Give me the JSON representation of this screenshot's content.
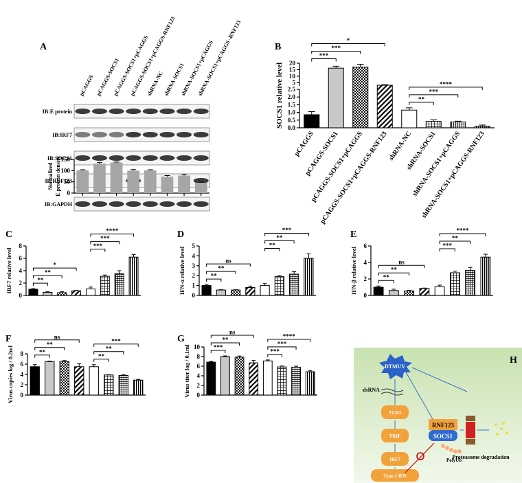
{
  "blot": {
    "panel": "A",
    "lanes": [
      "pCAGGS",
      "pCAGGS-SOCS1",
      "pCAGGS-SOCS1+pCAGGS",
      "pCAGGS-SOCS1+pCAGGS-RNF123",
      "shRNA-NC",
      "shRNA-SOCS1",
      "shRNA-SOCS1+pCAGGS",
      "shRNA-SOCS1+pCAGGS -RNF123"
    ],
    "rows": [
      "IB:E protein",
      "IB:IRF7",
      "IB:SOCS1",
      "IB:RNF123",
      "IB:GAPDH"
    ]
  },
  "bar_fills": [
    "black",
    "grey",
    "checker",
    "diagonal",
    "white",
    "grid",
    "dense-grid",
    "vertical"
  ],
  "chart_data": [
    {
      "type": "bar",
      "y_label": [
        "Normalized",
        "E protein density"
      ],
      "color": "#a6a6a6",
      "values": [
        101,
        131,
        136,
        100,
        101,
        73,
        78,
        46
      ],
      "errors": [
        3,
        5,
        2,
        5,
        3,
        5,
        4,
        3
      ],
      "ylim": [
        0,
        150
      ],
      "yticks": [
        0,
        50,
        100,
        150
      ]
    },
    {
      "type": "bar",
      "panel": "B",
      "y_label": "SOCS1 relative level",
      "categories": [
        "pCAGGS",
        "pCAGGS-SOCS1",
        "pCAGGS-SOCS1+pCAGGS",
        "pCAGGS-SOCS1+pCAGGS-RNF123",
        "shRNA-NC",
        "shRNA-SOCS1",
        "shRNA-SOCS1+pCAGGS",
        "shRNA-SOCS1+pCAGGS-RNF123"
      ],
      "values": [
        0.85,
        16.2,
        17,
        3,
        1.15,
        0.42,
        0.38,
        0.1
      ],
      "errors": [
        0.2,
        1.5,
        2.2,
        0.4,
        0.15,
        0.1,
        0.05,
        0.08
      ],
      "segments": [
        {
          "ylim": [
            0,
            2.5
          ],
          "yticks": [
            {
              "value": 0,
              "label": "0.0"
            },
            {
              "value": 0.5,
              "label": "0.5"
            },
            {
              "value": 1,
              "label": "1.0"
            },
            {
              "value": 1.5,
              "label": "1.5"
            },
            {
              "value": 2,
              "label": "2.0"
            },
            {
              "value": 2.5,
              "label": "2.5"
            }
          ]
        },
        {
          "ylim": [
            2.5,
            20
          ],
          "yticks": [
            5,
            10,
            15,
            20
          ]
        }
      ],
      "significance": [
        {
          "from": 0,
          "to": 1,
          "label": "***"
        },
        {
          "from": 0,
          "to": 2,
          "label": "***"
        },
        {
          "from": 0,
          "to": 3,
          "label": "*"
        },
        {
          "from": 4,
          "to": 5,
          "label": "**"
        },
        {
          "from": 4,
          "to": 6,
          "label": "***"
        },
        {
          "from": 4,
          "to": 7,
          "label": "****"
        }
      ]
    },
    {
      "type": "bar",
      "panel": "C",
      "y_label": "IRF7 relative level",
      "values": [
        1.0,
        0.5,
        0.45,
        0.75,
        1.05,
        3.1,
        3.5,
        6.2
      ],
      "errors": [
        0.1,
        0.1,
        0.15,
        0.05,
        0.3,
        0.2,
        0.5,
        0.4
      ],
      "ylim": [
        0,
        8
      ],
      "yticks": [
        0,
        2,
        4,
        6,
        8
      ],
      "significance": [
        {
          "from": 0,
          "to": 1,
          "label": "**"
        },
        {
          "from": 0,
          "to": 2,
          "label": "**"
        },
        {
          "from": 0,
          "to": 3,
          "label": "*"
        },
        {
          "from": 4,
          "to": 5,
          "label": "***"
        },
        {
          "from": 4,
          "to": 6,
          "label": "***"
        },
        {
          "from": 4,
          "to": 7,
          "label": "****"
        }
      ]
    },
    {
      "type": "bar",
      "panel": "D",
      "y_label": "IFN-α relative level",
      "values": [
        1.0,
        0.55,
        0.55,
        0.8,
        1.0,
        1.9,
        2.15,
        3.75
      ],
      "errors": [
        0.1,
        0.03,
        0.03,
        0.15,
        0.2,
        0.1,
        0.25,
        0.45
      ],
      "ylim": [
        0,
        5
      ],
      "yticks": [
        0,
        1,
        2,
        3,
        4,
        5
      ],
      "significance": [
        {
          "from": 0,
          "to": 1,
          "label": "**"
        },
        {
          "from": 0,
          "to": 2,
          "label": "**"
        },
        {
          "from": 0,
          "to": 3,
          "label": "ns"
        },
        {
          "from": 4,
          "to": 5,
          "label": "**"
        },
        {
          "from": 4,
          "to": 6,
          "label": "**"
        },
        {
          "from": 4,
          "to": 7,
          "label": "***"
        }
      ]
    },
    {
      "type": "bar",
      "panel": "E",
      "y_label": "IFN-β relative level",
      "values": [
        1.0,
        0.6,
        0.55,
        0.85,
        1.05,
        2.75,
        3.05,
        4.65
      ],
      "errors": [
        0.15,
        0.15,
        0.05,
        0.05,
        0.2,
        0.2,
        0.35,
        0.35
      ],
      "ylim": [
        0,
        6
      ],
      "yticks": [
        0,
        2,
        4,
        6
      ],
      "significance": [
        {
          "from": 0,
          "to": 1,
          "label": "**"
        },
        {
          "from": 0,
          "to": 2,
          "label": "**"
        },
        {
          "from": 0,
          "to": 3,
          "label": "ns"
        },
        {
          "from": 4,
          "to": 5,
          "label": "***"
        },
        {
          "from": 4,
          "to": 6,
          "label": "**"
        },
        {
          "from": 4,
          "to": 7,
          "label": "****"
        }
      ]
    },
    {
      "type": "bar",
      "panel": "F",
      "y_label": "Virus copies log / 0.2ml",
      "values": [
        5.5,
        6.5,
        6.5,
        5.5,
        5.5,
        3.9,
        3.8,
        2.9
      ],
      "errors": [
        0.4,
        0.1,
        0.2,
        0.6,
        0.4,
        0.05,
        0.2,
        0.15
      ],
      "ylim": [
        0,
        8
      ],
      "yticks": [
        0,
        2,
        4,
        6,
        8
      ],
      "significance": [
        {
          "from": 0,
          "to": 1,
          "label": "**"
        },
        {
          "from": 0,
          "to": 2,
          "label": "**"
        },
        {
          "from": 0,
          "to": 3,
          "label": "ns"
        },
        {
          "from": 4,
          "to": 5,
          "label": "**"
        },
        {
          "from": 4,
          "to": 6,
          "label": "**"
        },
        {
          "from": 4,
          "to": 7,
          "label": "***"
        }
      ]
    },
    {
      "type": "bar",
      "panel": "G",
      "y_label": "Virus titer log / 0.1ml",
      "values": [
        6.85,
        8.0,
        7.9,
        6.7,
        7.1,
        5.85,
        5.8,
        4.85
      ],
      "errors": [
        0.15,
        0.15,
        0.2,
        0.5,
        0.2,
        0.2,
        0.2,
        0.2
      ],
      "ylim": [
        0,
        10
      ],
      "yticks": [
        0,
        2,
        4,
        6,
        8,
        10
      ],
      "significance": [
        {
          "from": 0,
          "to": 1,
          "label": "***"
        },
        {
          "from": 0,
          "to": 2,
          "label": "**"
        },
        {
          "from": 0,
          "to": 3,
          "label": "ns"
        },
        {
          "from": 4,
          "to": 5,
          "label": "***"
        },
        {
          "from": 4,
          "to": 6,
          "label": "***"
        },
        {
          "from": 4,
          "to": 7,
          "label": "****"
        }
      ]
    }
  ],
  "diagram": {
    "panel": "H",
    "virus": "DTMUV",
    "dsrna": "dsRNA",
    "pathway": [
      "TLR3",
      "TRIF",
      "IRF7",
      "Type 1 IFN"
    ],
    "complex": [
      "RNF123",
      "SOCS1"
    ],
    "polyub": "PolyUb",
    "degradation": "Proteasome degradation"
  }
}
